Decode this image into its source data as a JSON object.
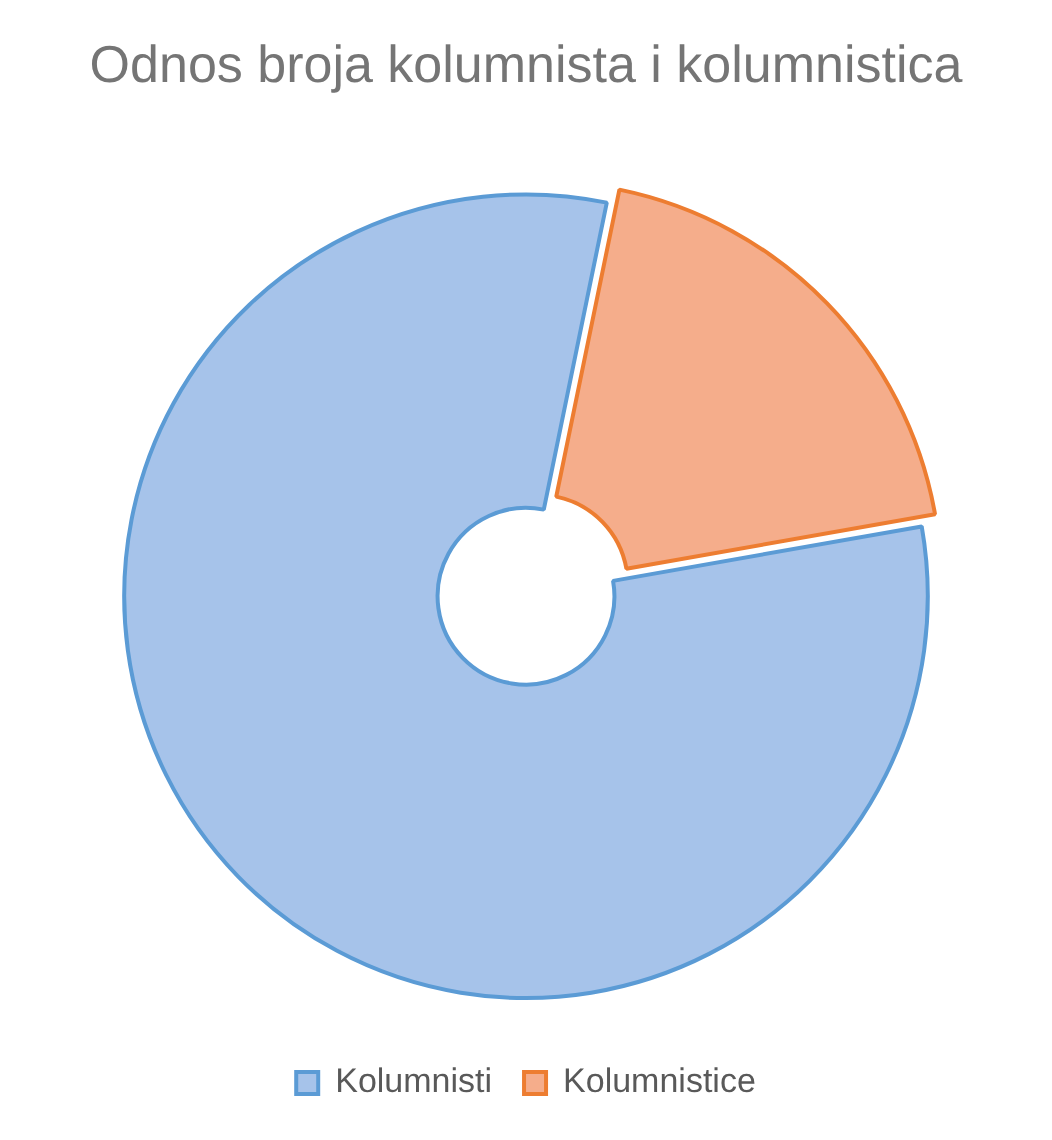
{
  "chart_data": {
    "type": "donut",
    "title": "Odnos broja kolumnista i kolumnistica",
    "categories": [
      "Kolumnisti",
      "Kolumnistice"
    ],
    "values": [
      81,
      19
    ],
    "colors": [
      "#a6c3ea",
      "#f5ad8b"
    ],
    "legend": "bottom"
  }
}
